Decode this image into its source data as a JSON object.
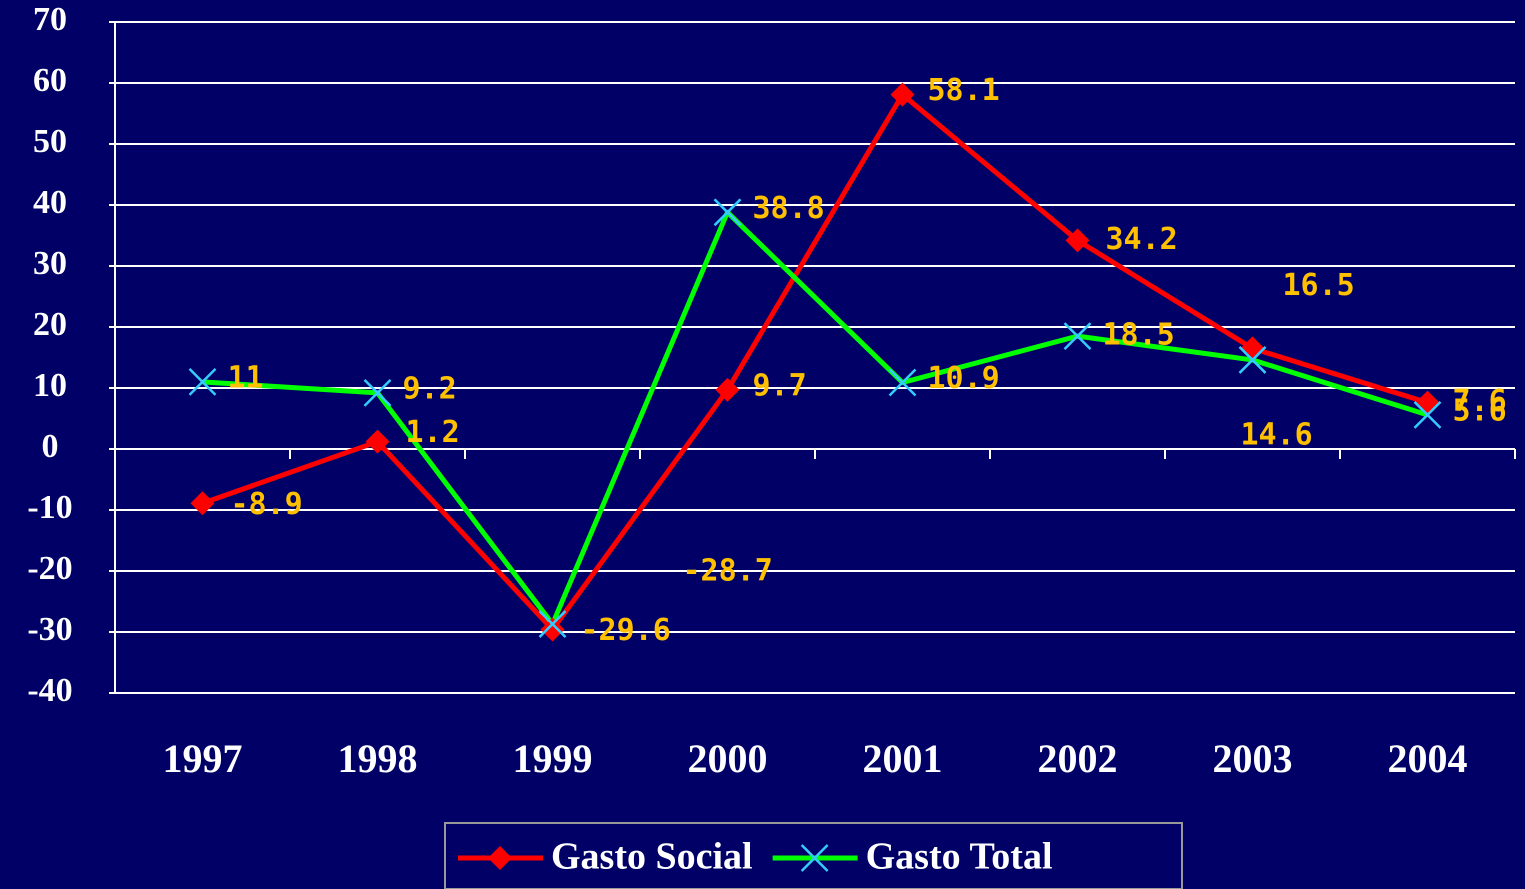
{
  "chart_data": {
    "type": "line",
    "categories": [
      "1997",
      "1998",
      "1999",
      "2000",
      "2001",
      "2002",
      "2003",
      "2004"
    ],
    "series": [
      {
        "name": "Gasto Social",
        "color": "#ff0000",
        "marker": "diamond",
        "marker_color": "#ff0000",
        "values": [
          -8.9,
          1.2,
          -29.6,
          9.7,
          58.1,
          34.2,
          16.5,
          7.6
        ]
      },
      {
        "name": "Gasto Total",
        "color": "#00ff00",
        "marker": "x",
        "marker_color": "#33ccff",
        "values": [
          11,
          9.2,
          -28.7,
          38.8,
          10.9,
          18.5,
          14.6,
          5.6
        ]
      }
    ],
    "ylim": [
      -40,
      70
    ],
    "yticks": [
      -40,
      -30,
      -20,
      -10,
      0,
      10,
      20,
      30,
      40,
      50,
      60,
      70
    ],
    "grid": true,
    "legend": "bottom"
  }
}
